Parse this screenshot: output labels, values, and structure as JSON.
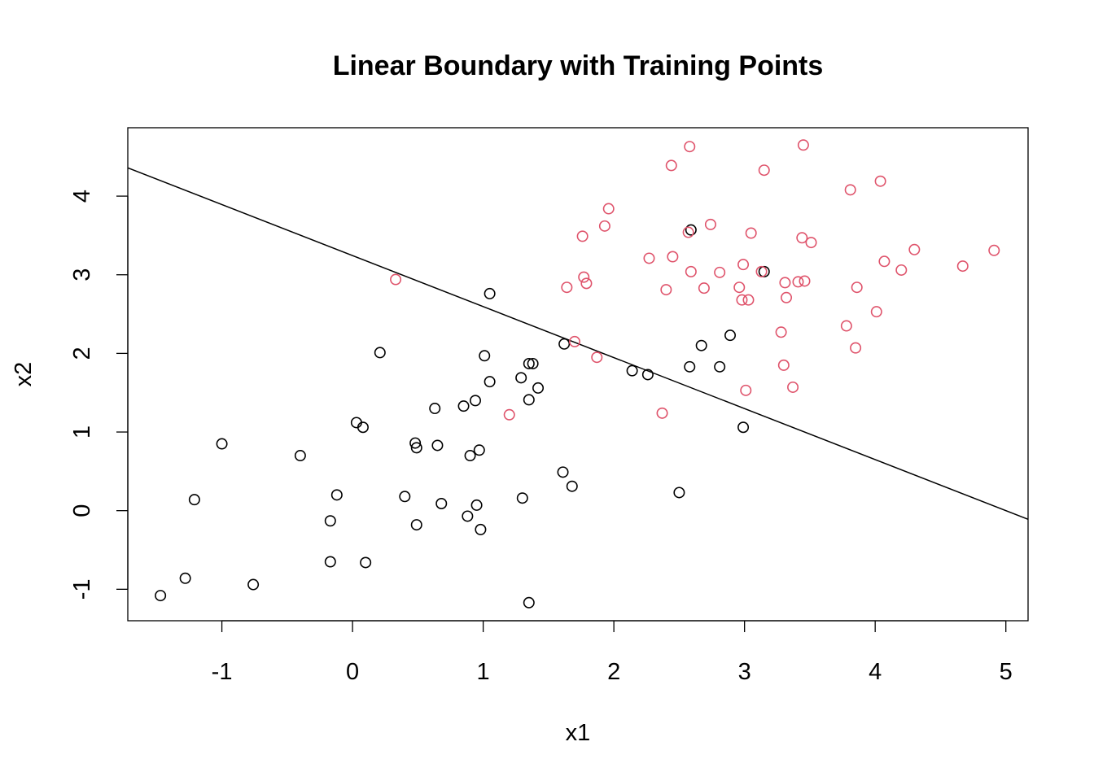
{
  "chart_data": {
    "type": "scatter",
    "title": "Linear Boundary with Training Points",
    "xlabel": "x1",
    "ylabel": "x2",
    "xlim": [
      -1.72,
      5.17
    ],
    "ylim": [
      -1.4,
      4.87
    ],
    "xticks": [
      -1,
      0,
      1,
      2,
      3,
      4,
      5
    ],
    "yticks": [
      -1,
      0,
      1,
      2,
      3,
      4
    ],
    "xtick_labels": [
      "-1",
      "0",
      "1",
      "2",
      "3",
      "4",
      "5"
    ],
    "ytick_labels": [
      "-1",
      "0",
      "1",
      "2",
      "3",
      "4"
    ],
    "grid": false,
    "legend": "none",
    "marker": "open-circle",
    "series": [
      {
        "color": "#000000",
        "points": [
          [
            -1.47,
            -1.08
          ],
          [
            -1.28,
            -0.86
          ],
          [
            -1.21,
            0.14
          ],
          [
            -1.0,
            0.85
          ],
          [
            -0.76,
            -0.94
          ],
          [
            -0.4,
            0.7
          ],
          [
            -0.17,
            -0.13
          ],
          [
            -0.17,
            -0.65
          ],
          [
            -0.12,
            0.2
          ],
          [
            0.03,
            1.12
          ],
          [
            0.08,
            1.06
          ],
          [
            0.1,
            -0.66
          ],
          [
            0.21,
            2.01
          ],
          [
            0.4,
            0.18
          ],
          [
            0.48,
            0.86
          ],
          [
            0.49,
            0.8
          ],
          [
            0.49,
            -0.18
          ],
          [
            0.63,
            1.3
          ],
          [
            0.65,
            0.83
          ],
          [
            0.68,
            0.09
          ],
          [
            0.85,
            1.33
          ],
          [
            0.88,
            -0.07
          ],
          [
            0.9,
            0.7
          ],
          [
            0.94,
            1.4
          ],
          [
            0.95,
            0.07
          ],
          [
            0.97,
            0.77
          ],
          [
            0.98,
            -0.24
          ],
          [
            1.01,
            1.97
          ],
          [
            1.05,
            2.76
          ],
          [
            1.05,
            1.64
          ],
          [
            1.29,
            1.69
          ],
          [
            1.3,
            0.16
          ],
          [
            1.35,
            1.87
          ],
          [
            1.35,
            1.41
          ],
          [
            1.35,
            -1.17
          ],
          [
            1.38,
            1.87
          ],
          [
            1.42,
            1.56
          ],
          [
            1.61,
            0.49
          ],
          [
            1.62,
            2.12
          ],
          [
            1.68,
            0.31
          ],
          [
            2.14,
            1.78
          ],
          [
            2.26,
            1.73
          ],
          [
            2.5,
            0.23
          ],
          [
            2.58,
            1.83
          ],
          [
            2.59,
            3.57
          ],
          [
            2.67,
            2.1
          ],
          [
            2.81,
            1.83
          ],
          [
            2.89,
            2.23
          ],
          [
            2.99,
            1.06
          ],
          [
            3.15,
            3.04
          ]
        ]
      },
      {
        "color": "#df536b",
        "points": [
          [
            0.33,
            2.94
          ],
          [
            1.2,
            1.22
          ],
          [
            1.64,
            2.84
          ],
          [
            1.7,
            2.15
          ],
          [
            1.76,
            3.49
          ],
          [
            1.77,
            2.97
          ],
          [
            1.79,
            2.89
          ],
          [
            1.87,
            1.95
          ],
          [
            1.93,
            3.62
          ],
          [
            1.96,
            3.84
          ],
          [
            2.27,
            3.21
          ],
          [
            2.37,
            1.24
          ],
          [
            2.4,
            2.81
          ],
          [
            2.44,
            4.39
          ],
          [
            2.45,
            3.23
          ],
          [
            2.57,
            3.54
          ],
          [
            2.58,
            4.63
          ],
          [
            2.59,
            3.04
          ],
          [
            2.69,
            2.83
          ],
          [
            2.74,
            3.64
          ],
          [
            2.81,
            3.03
          ],
          [
            2.96,
            2.84
          ],
          [
            2.98,
            2.68
          ],
          [
            2.99,
            3.13
          ],
          [
            3.01,
            1.53
          ],
          [
            3.03,
            2.68
          ],
          [
            3.05,
            3.53
          ],
          [
            3.13,
            3.04
          ],
          [
            3.15,
            4.33
          ],
          [
            3.28,
            2.27
          ],
          [
            3.3,
            1.85
          ],
          [
            3.31,
            2.9
          ],
          [
            3.32,
            2.71
          ],
          [
            3.37,
            1.57
          ],
          [
            3.41,
            2.91
          ],
          [
            3.44,
            3.47
          ],
          [
            3.45,
            4.65
          ],
          [
            3.46,
            2.92
          ],
          [
            3.51,
            3.41
          ],
          [
            3.78,
            2.35
          ],
          [
            3.81,
            4.08
          ],
          [
            3.85,
            2.07
          ],
          [
            3.86,
            2.84
          ],
          [
            4.01,
            2.53
          ],
          [
            4.04,
            4.19
          ],
          [
            4.07,
            3.17
          ],
          [
            4.2,
            3.06
          ],
          [
            4.3,
            3.32
          ],
          [
            4.67,
            3.11
          ],
          [
            4.91,
            3.31
          ]
        ]
      }
    ],
    "boundary_line": {
      "color": "#000000",
      "points": [
        [
          -1.72,
          4.36
        ],
        [
          5.17,
          -0.11
        ]
      ]
    }
  }
}
